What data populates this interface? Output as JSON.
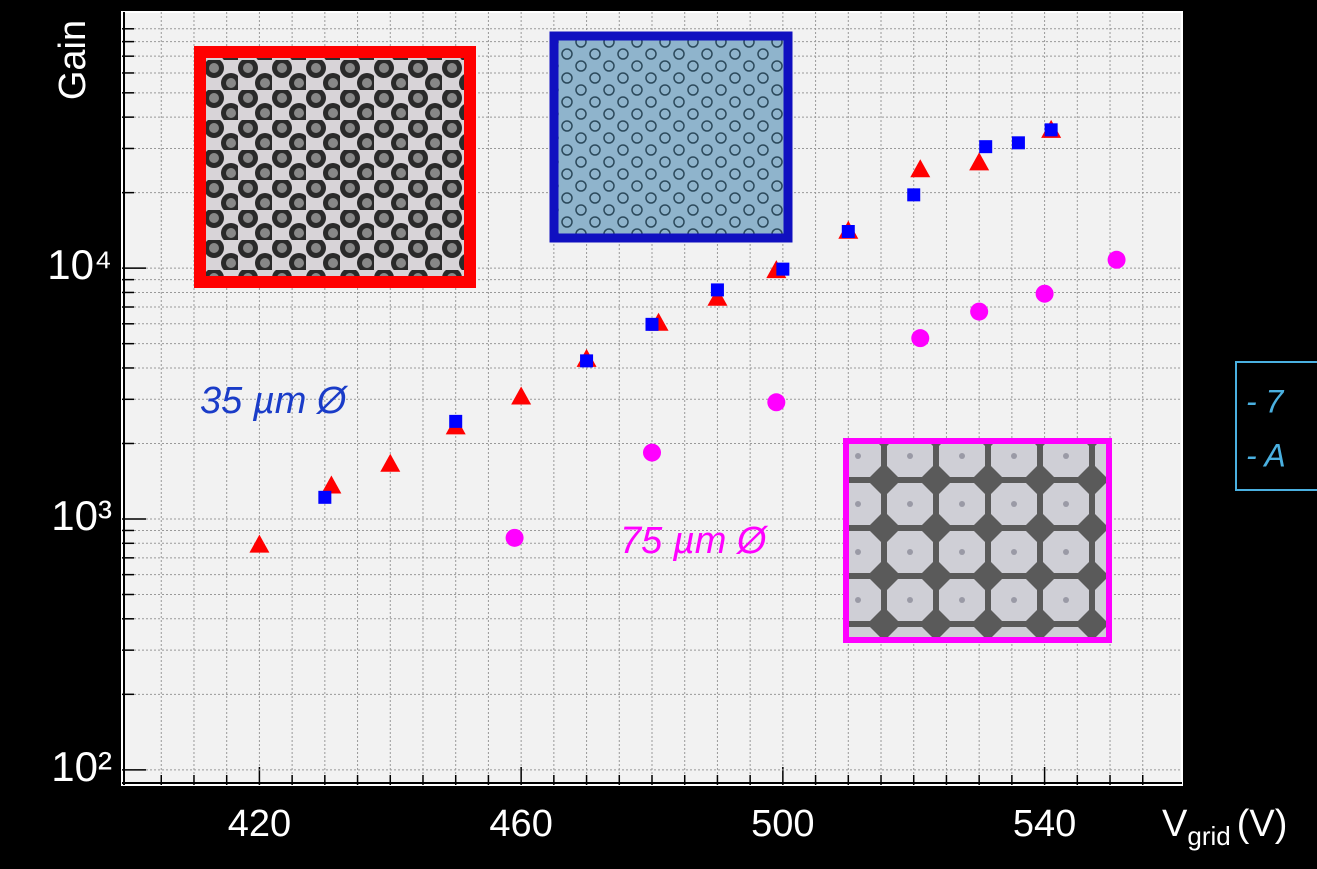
{
  "chart_data": {
    "type": "scatter",
    "ylabel": "Gain",
    "xlabel": "V",
    "xlabel_sub": "grid",
    "xlabel_unit": "(V)",
    "xlim": [
      399,
      561
    ],
    "xticks": [
      420,
      460,
      500,
      540
    ],
    "xminorticks": [
      405,
      410,
      415,
      425,
      430,
      435,
      440,
      445,
      450,
      455,
      465,
      470,
      475,
      480,
      485,
      490,
      495,
      505,
      510,
      515,
      520,
      525,
      530,
      535,
      545,
      550,
      555
    ],
    "ylim": [
      87,
      105000
    ],
    "yscale": "log",
    "yticks": [
      {
        "value": 100,
        "label": "10²"
      },
      {
        "value": 1000,
        "label": "10³"
      },
      {
        "value": 10000,
        "label": "10⁴"
      }
    ],
    "yminorticks": [
      200,
      300,
      400,
      500,
      600,
      700,
      800,
      900,
      2000,
      3000,
      4000,
      5000,
      6000,
      7000,
      8000,
      9000,
      20000,
      30000,
      40000,
      50000,
      60000,
      70000,
      80000,
      90000
    ],
    "grid": true,
    "annotations": [
      {
        "text": "35 µm Ø",
        "color": "#1a3cc8"
      },
      {
        "text": "75 µm Ø",
        "color": "#ff00ff"
      }
    ],
    "side_notes": [
      "- 7",
      "- A"
    ],
    "series": [
      {
        "color": "#ff0000",
        "marker": "triangle",
        "x": [
          420,
          431,
          440,
          450,
          460,
          470,
          481,
          490,
          499,
          510,
          521,
          530,
          541
        ],
        "values": [
          790,
          1360,
          1660,
          2340,
          3080,
          4350,
          6060,
          7620,
          9820,
          14100,
          24800,
          26400,
          35600
        ]
      },
      {
        "color": "#0000ff",
        "marker": "square",
        "x": [
          430,
          450,
          470,
          480,
          490,
          500,
          510,
          520,
          531,
          536,
          541
        ],
        "values": [
          1220,
          2450,
          4270,
          5970,
          8190,
          9910,
          14000,
          19600,
          30500,
          31600,
          35600
        ]
      },
      {
        "color": "#ff00ff",
        "marker": "circle",
        "x": [
          459,
          480,
          499,
          521,
          530,
          540,
          551
        ],
        "values": [
          841,
          1840,
          2920,
          5260,
          6710,
          7910,
          10800
        ]
      }
    ]
  }
}
